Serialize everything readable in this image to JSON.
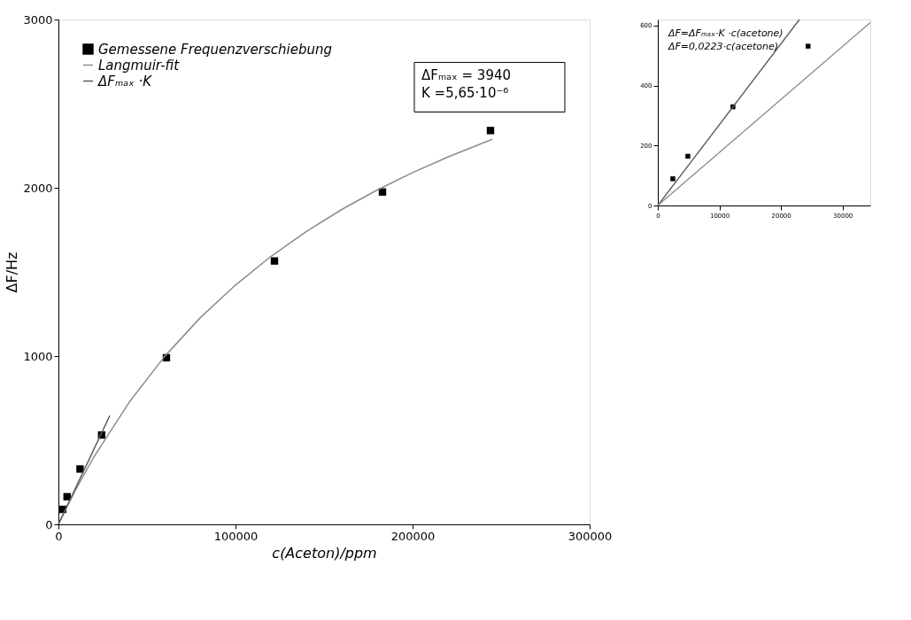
{
  "chart_data": [
    {
      "type": "scatter",
      "xlabel": "c(Aceton)/ppm",
      "ylabel": "ΔF/Hz",
      "xlim": [
        0,
        300000
      ],
      "ylim": [
        0,
        3000
      ],
      "xticks": [
        0,
        100000,
        200000,
        300000
      ],
      "yticks": [
        0,
        1000,
        2000,
        3000
      ],
      "grid": false,
      "legend": "top left",
      "annotations": [
        "ΔFₘₐₓ        = 3940",
        "K               =5,65·10⁻⁶"
      ],
      "series": [
        {
          "name": "Gemessene Frequenzverschiebung",
          "color": "#000000",
          "marker": "square",
          "x": [
            2440,
            4880,
            12200,
            24400,
            61000,
            122000,
            183000,
            244000
          ],
          "values": [
            89,
            164,
            329,
            531,
            990,
            1565,
            1975,
            2340
          ]
        },
        {
          "name": "Langmuir-fit",
          "color": "#8c8c8c",
          "type": "line",
          "x": [
            0,
            5000,
            10000,
            20000,
            40000,
            60000,
            80000,
            100000,
            120000,
            140000,
            160000,
            180000,
            200000,
            220000,
            245000
          ],
          "values": [
            0,
            108,
            211,
            400,
            726,
            998,
            1227,
            1422,
            1592,
            1740,
            1871,
            1987,
            2090,
            2183,
            2288
          ]
        },
        {
          "name": "ΔFₘₐₓ ·K",
          "color": "#5a5a5a",
          "type": "line",
          "x": [
            0,
            29000
          ],
          "values": [
            0,
            646
          ]
        }
      ]
    },
    {
      "type": "scatter",
      "xlim": [
        0,
        34500
      ],
      "ylim": [
        0,
        620
      ],
      "xticks": [
        0,
        10000,
        20000,
        30000
      ],
      "yticks": [
        0,
        200,
        400,
        600
      ],
      "grid": false,
      "annotations": [
        "ΔF=ΔFₘₐₓ·K ·c(acetone)",
        "ΔF=0,0223·c(acetone)"
      ],
      "series": [
        {
          "color": "#000000",
          "marker": "square",
          "x": [
            2440,
            4880,
            12200,
            24400
          ],
          "values": [
            89,
            164,
            329,
            531
          ]
        },
        {
          "color": "#5a5a5a",
          "type": "line",
          "x": [
            0,
            23000
          ],
          "values": [
            0,
            620
          ]
        },
        {
          "color": "#8c8c8c",
          "type": "line",
          "x": [
            0,
            34500
          ],
          "values": [
            0,
            610
          ]
        }
      ]
    }
  ]
}
